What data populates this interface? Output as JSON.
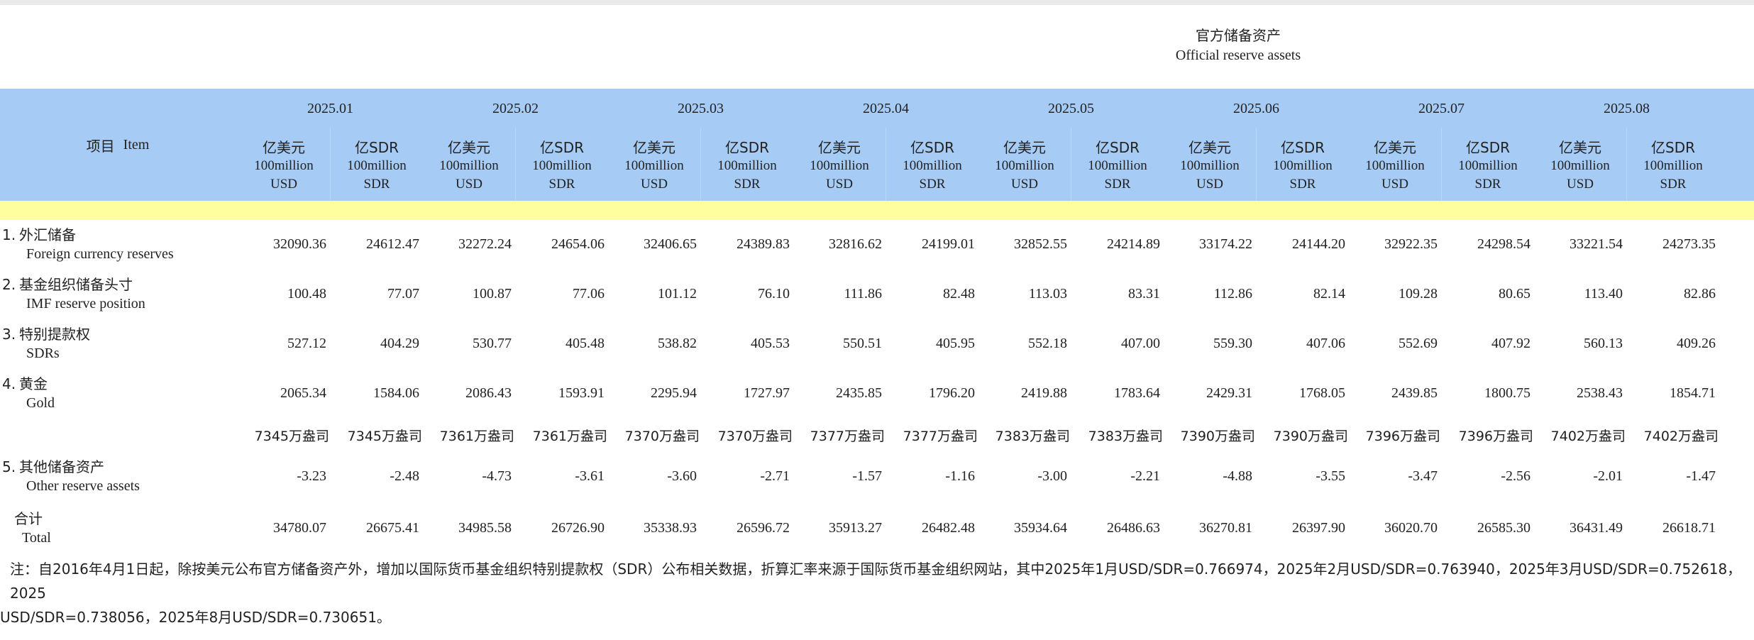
{
  "title": {
    "zh": "官方储备资产",
    "en": "Official reserve assets"
  },
  "item_header": {
    "zh": "项目",
    "en": "Item"
  },
  "months": [
    {
      "label": "2025.01"
    },
    {
      "label": "2025.02"
    },
    {
      "label": "2025.03"
    },
    {
      "label": "2025.04"
    },
    {
      "label": "2025.05"
    },
    {
      "label": "2025.06"
    },
    {
      "label": "2025.07"
    },
    {
      "label": "2025.08"
    }
  ],
  "units": {
    "usd": {
      "zh": "亿美元",
      "en1": "100million",
      "en2": "USD"
    },
    "sdr": {
      "zh": "亿SDR",
      "en1": "100million",
      "en2": "SDR"
    }
  },
  "rows": [
    {
      "num": "1.",
      "zh": "外汇储备",
      "en": "Foreign currency reserves",
      "values": [
        "32090.36",
        "24612.47",
        "32272.24",
        "24654.06",
        "32406.65",
        "24389.83",
        "32816.62",
        "24199.01",
        "32852.55",
        "24214.89",
        "33174.22",
        "24144.20",
        "32922.35",
        "24298.54",
        "33221.54",
        "24273.35"
      ]
    },
    {
      "num": "2.",
      "zh": "基金组织储备头寸",
      "en": "IMF reserve position",
      "values": [
        "100.48",
        "77.07",
        "100.87",
        "77.06",
        "101.12",
        "76.10",
        "111.86",
        "82.48",
        "113.03",
        "83.31",
        "112.86",
        "82.14",
        "109.28",
        "80.65",
        "113.40",
        "82.86"
      ]
    },
    {
      "num": "3.",
      "zh": "特别提款权",
      "en": "SDRs",
      "values": [
        "527.12",
        "404.29",
        "530.77",
        "405.48",
        "538.82",
        "405.53",
        "550.51",
        "405.95",
        "552.18",
        "407.00",
        "559.30",
        "407.06",
        "552.69",
        "407.92",
        "560.13",
        "409.26"
      ]
    },
    {
      "num": "4.",
      "zh": "黄金",
      "en": "Gold",
      "values": [
        "2065.34",
        "1584.06",
        "2086.43",
        "1593.91",
        "2295.94",
        "1727.97",
        "2435.85",
        "1796.20",
        "2419.88",
        "1783.64",
        "2429.31",
        "1768.05",
        "2439.85",
        "1800.75",
        "2538.43",
        "1854.71"
      ]
    },
    {
      "num": "",
      "zh": "",
      "en": "",
      "values": [
        "7345万盎司",
        "7345万盎司",
        "7361万盎司",
        "7361万盎司",
        "7370万盎司",
        "7370万盎司",
        "7377万盎司",
        "7377万盎司",
        "7383万盎司",
        "7383万盎司",
        "7390万盎司",
        "7390万盎司",
        "7396万盎司",
        "7396万盎司",
        "7402万盎司",
        "7402万盎司"
      ]
    },
    {
      "num": "5.",
      "zh": "其他储备资产",
      "en": "Other reserve assets",
      "values": [
        "-3.23",
        "-2.48",
        "-4.73",
        "-3.61",
        "-3.60",
        "-2.71",
        "-1.57",
        "-1.16",
        "-3.00",
        "-2.21",
        "-4.88",
        "-3.55",
        "-3.47",
        "-2.56",
        "-2.01",
        "-1.47"
      ]
    },
    {
      "num": "",
      "zh": "合计",
      "en": "Total",
      "values": [
        "34780.07",
        "26675.41",
        "34985.58",
        "26726.90",
        "35338.93",
        "26596.72",
        "35913.27",
        "26482.48",
        "35934.64",
        "26486.63",
        "36270.81",
        "26397.90",
        "36020.70",
        "26585.30",
        "36431.49",
        "26618.71"
      ]
    }
  ],
  "note": {
    "line1": "注：自2016年4月1日起，除按美元公布官方储备资产外，增加以国际货币基金组织特别提款权（SDR）公布相关数据，折算汇率来源于国际货币基金组织网站，其中2025年1月USD/SDR=0.766974，2025年2月USD/SDR=0.763940，2025年3月USD/SDR=0.752618，2025",
    "line2": "USD/SDR=0.738056，2025年8月USD/SDR=0.730651。"
  }
}
